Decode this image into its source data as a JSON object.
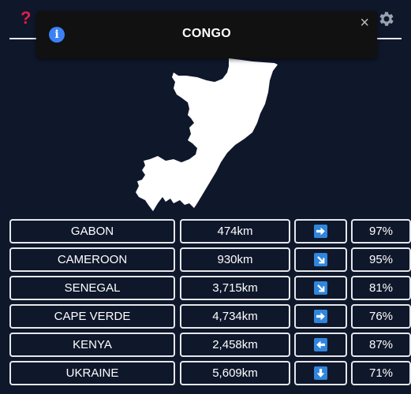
{
  "header": {
    "help_icon": "question-icon",
    "settings_icon": "gear-icon",
    "colors": {
      "help": "#e11d48",
      "background": "#0f172b",
      "info": "#3b82f6"
    }
  },
  "toast": {
    "icon": "info-icon",
    "icon_glyph": "i",
    "title": "CONGO",
    "close": "×"
  },
  "map": {
    "country": "Congo",
    "color": "#ffffff"
  },
  "guesses": [
    {
      "country": "GABON",
      "distance": "474km",
      "direction": "east",
      "percent": "97%"
    },
    {
      "country": "CAMEROON",
      "distance": "930km",
      "direction": "south-east",
      "percent": "95%"
    },
    {
      "country": "SENEGAL",
      "distance": "3,715km",
      "direction": "south-east",
      "percent": "81%"
    },
    {
      "country": "CAPE VERDE",
      "distance": "4,734km",
      "direction": "east",
      "percent": "76%"
    },
    {
      "country": "KENYA",
      "distance": "2,458km",
      "direction": "west",
      "percent": "87%"
    },
    {
      "country": "UKRAINE",
      "distance": "5,609km",
      "direction": "south",
      "percent": "71%"
    }
  ]
}
